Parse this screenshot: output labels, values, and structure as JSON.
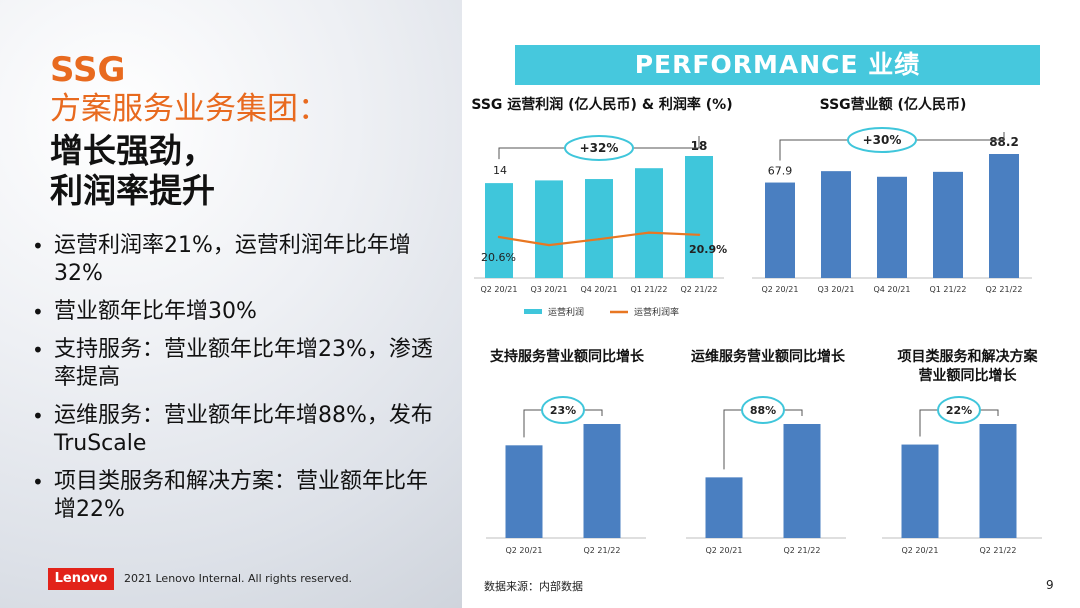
{
  "slide": {
    "title_line1": "SSG",
    "title_line2": "方案服务业务集团：",
    "title_line3": "增长强劲，",
    "title_line4": "利润率提升",
    "bullets": [
      "运营利润率21%，运营利润年比年增32%",
      "营业额年比年增30%",
      "支持服务：营业额年比年增23%，渗透率提高",
      "运维服务：营业额年比年增88%，发布 TruScale",
      "项目类服务和解决方案：营业额年比年增22%"
    ],
    "logo_text": "Lenovo",
    "copyright": "2021 Lenovo Internal. All rights reserved.",
    "banner": "PERFORMANCE 业绩",
    "source_note": "数据来源：内部数据",
    "page_number": "9"
  },
  "colors": {
    "accent_orange": "#E86A1F",
    "banner_cyan": "#46C8DD",
    "bar_cyan": "#3FC6DB",
    "bar_blue": "#4A7FC1",
    "line_orange": "#E87722",
    "logo_red": "#E2231A"
  },
  "chart_data": [
    {
      "type": "bar",
      "title": "SSG 运营利润 (亿人民币) & 利润率 (%)",
      "categories": [
        "Q2 20/21",
        "Q3 20/21",
        "Q4 20/21",
        "Q1 21/22",
        "Q2 21/22"
      ],
      "series": [
        {
          "name": "运营利润",
          "type": "bar",
          "values": [
            14,
            14.4,
            14.6,
            16.2,
            18
          ]
        },
        {
          "name": "运营利润率",
          "type": "line",
          "values": [
            20.6,
            19.5,
            20.3,
            21.2,
            20.9
          ]
        }
      ],
      "data_labels": {
        "first_bar": "14",
        "last_bar": "18",
        "first_line": "20.6%",
        "last_line": "20.9%"
      },
      "growth_label": "+32%",
      "legend_position": "bottom"
    },
    {
      "type": "bar",
      "title": "SSG营业额 (亿人民币)",
      "categories": [
        "Q2 20/21",
        "Q3 20/21",
        "Q4 20/21",
        "Q1 21/22",
        "Q2 21/22"
      ],
      "values": [
        67.9,
        76,
        72,
        75.5,
        88.2
      ],
      "data_labels": {
        "first_bar": "67.9",
        "last_bar": "88.2"
      },
      "growth_label": "+30%"
    },
    {
      "type": "bar",
      "title": "支持服务营业额同比增长",
      "categories": [
        "Q2 20/21",
        "Q2 21/22"
      ],
      "values": [
        100,
        123
      ],
      "growth_label": "23%"
    },
    {
      "type": "bar",
      "title": "运维服务营业额同比增长",
      "categories": [
        "Q2 20/21",
        "Q2 21/22"
      ],
      "values": [
        100,
        188
      ],
      "growth_label": "88%"
    },
    {
      "type": "bar",
      "title": "项目类服务和解决方案营业额同比增长",
      "title_lines": [
        "项目类服务和解决方案",
        "营业额同比增长"
      ],
      "categories": [
        "Q2 20/21",
        "Q2 21/22"
      ],
      "values": [
        100,
        122
      ],
      "growth_label": "22%"
    }
  ]
}
